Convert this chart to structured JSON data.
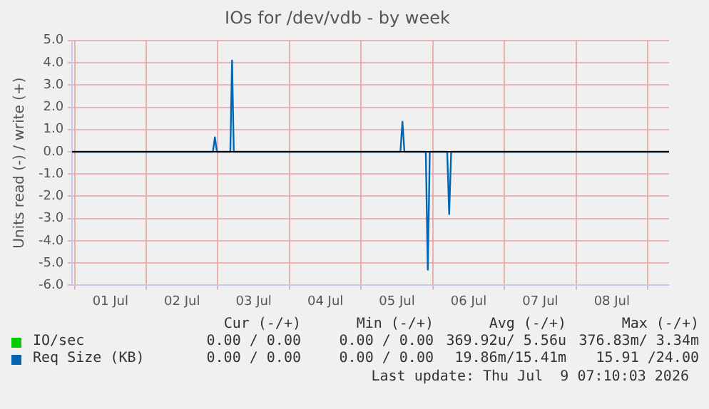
{
  "chart_data": {
    "type": "line",
    "title": "IOs for /dev/vdb - by week",
    "ylabel": "Units read (-) / write (+)",
    "xlim": [
      "2026-06-30T23:10",
      "2026-07-09T07:10"
    ],
    "xticks": [
      {
        "value": "2026-07-01T00:00",
        "label": null
      },
      {
        "value": "2026-07-01T12:00",
        "label": "01 Jul"
      },
      {
        "value": "2026-07-02T00:00",
        "label": null
      },
      {
        "value": "2026-07-02T12:00",
        "label": "02 Jul"
      },
      {
        "value": "2026-07-03T00:00",
        "label": null
      },
      {
        "value": "2026-07-03T12:00",
        "label": "03 Jul"
      },
      {
        "value": "2026-07-04T00:00",
        "label": null
      },
      {
        "value": "2026-07-04T12:00",
        "label": "04 Jul"
      },
      {
        "value": "2026-07-05T00:00",
        "label": null
      },
      {
        "value": "2026-07-05T12:00",
        "label": "05 Jul"
      },
      {
        "value": "2026-07-06T00:00",
        "label": null
      },
      {
        "value": "2026-07-06T12:00",
        "label": "06 Jul"
      },
      {
        "value": "2026-07-07T00:00",
        "label": null
      },
      {
        "value": "2026-07-07T12:00",
        "label": "07 Jul"
      },
      {
        "value": "2026-07-08T00:00",
        "label": null
      },
      {
        "value": "2026-07-08T12:00",
        "label": "08 Jul"
      },
      {
        "value": "2026-07-09T00:00",
        "label": null
      }
    ],
    "ylim": [
      -6,
      5
    ],
    "yticks": [
      {
        "value": -6,
        "label": "-6.0"
      },
      {
        "value": -5,
        "label": "-5.0"
      },
      {
        "value": -4,
        "label": "-4.0"
      },
      {
        "value": -3,
        "label": "-3.0"
      },
      {
        "value": -2,
        "label": "-2.0"
      },
      {
        "value": -1,
        "label": "-1.0"
      },
      {
        "value": 0,
        "label": "0.0"
      },
      {
        "value": 1,
        "label": "1.0"
      },
      {
        "value": 2,
        "label": "2.0"
      },
      {
        "value": 3,
        "label": "3.0"
      },
      {
        "value": 4,
        "label": "4.0"
      },
      {
        "value": 5,
        "label": "5.0"
      }
    ],
    "grid": true,
    "legend": "bottom",
    "marker": "none",
    "line_style": "solid",
    "series": [
      {
        "name": "IO/sec",
        "color": "#00cc00"
      },
      {
        "name": "Req Size (KB)",
        "color": "#0066b3",
        "x": [
          "2026-06-30T23:10",
          "2026-07-02T22:20",
          "2026-07-02T23:00",
          "2026-07-02T23:40",
          "2026-07-03T04:10",
          "2026-07-03T04:45",
          "2026-07-03T05:20",
          "2026-07-05T13:10",
          "2026-07-05T13:50",
          "2026-07-05T14:30",
          "2026-07-05T21:40",
          "2026-07-05T22:20",
          "2026-07-05T23:00",
          "2026-07-06T04:50",
          "2026-07-06T05:30",
          "2026-07-06T06:10",
          "2026-07-09T07:10"
        ],
        "values": [
          0,
          0,
          0.65,
          0,
          0,
          4.1,
          0,
          0,
          1.35,
          0,
          0,
          -5.3,
          0,
          0,
          -2.8,
          0,
          0
        ]
      }
    ],
    "annotations": [
      "Cur (-/+)",
      "Min (-/+)",
      "Avg (-/+)",
      "Max (-/+)",
      "0.00 / 0.00",
      "0.00 / 0.00",
      "369.92u/ 5.56u",
      "376.83m/ 3.34m",
      "0.00 / 0.00",
      "0.00 / 0.00",
      "19.86m/15.41m",
      "15.91 /24.00",
      "Last update: Thu Jul  9 07:10:03 2026"
    ]
  }
}
